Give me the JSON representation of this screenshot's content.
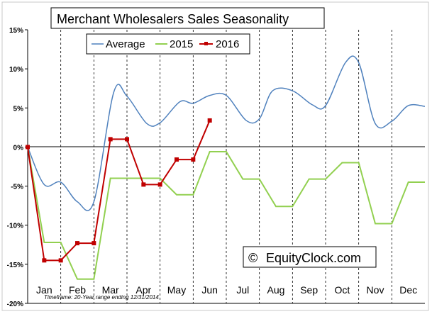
{
  "chart_data": {
    "type": "line",
    "title": "Merchant Wholesalers Sales Seasonality",
    "categories": [
      "Jan",
      "Feb",
      "Mar",
      "Apr",
      "May",
      "Jun",
      "Jul",
      "Aug",
      "Sep",
      "Oct",
      "Nov",
      "Dec"
    ],
    "y_ticks": [
      "15%",
      "10%",
      "5%",
      "0%",
      "-5%",
      "-10%",
      "-15%",
      "-20%"
    ],
    "ylim": [
      -20,
      15
    ],
    "xlim": [
      0,
      12
    ],
    "grid": "vertical dashed month dividers",
    "legend_placement": "top-left",
    "series": [
      {
        "name": "Average",
        "color": "#4f81bd",
        "smooth": true,
        "x": [
          0,
          0.5,
          1,
          1.5,
          2,
          2.6,
          3,
          3.6,
          4,
          4.6,
          5,
          5.5,
          6,
          6.6,
          7,
          7.4,
          8,
          8.6,
          9,
          9.6,
          10,
          10.5,
          11,
          11.5,
          12
        ],
        "values": [
          0,
          -4.8,
          -4.5,
          -7.0,
          -7.0,
          7.0,
          6.5,
          3.0,
          3.1,
          5.8,
          5.6,
          6.6,
          6.6,
          3.4,
          3.6,
          7.2,
          7.2,
          5.4,
          5.3,
          10.8,
          10.8,
          3.0,
          3.3,
          5.3,
          5.2
        ]
      },
      {
        "name": "2015",
        "color": "#92d050",
        "x": [
          0,
          0.5,
          1,
          1.5,
          2,
          2.5,
          3,
          3.5,
          4,
          4.5,
          5,
          5.5,
          6,
          6.5,
          7,
          7.5,
          8,
          8.5,
          9,
          9.5,
          10,
          10.5,
          11,
          11.5,
          12
        ],
        "values": [
          0,
          -12.2,
          -12.2,
          -16.9,
          -16.9,
          -4.0,
          -4.0,
          -4.0,
          -4.0,
          -6.1,
          -6.1,
          -0.6,
          -0.6,
          -4.1,
          -4.1,
          -7.6,
          -7.6,
          -4.1,
          -4.1,
          -2.0,
          -2.0,
          -9.8,
          -9.8,
          -4.5,
          -4.5
        ]
      },
      {
        "name": "2016",
        "color": "#c00000",
        "markers": true,
        "x": [
          0,
          0.5,
          1,
          1.5,
          2,
          2.5,
          3,
          3.5,
          4,
          4.5,
          5,
          5.5
        ],
        "values": [
          0,
          -14.5,
          -14.5,
          -12.3,
          -12.3,
          1.0,
          1.0,
          -4.8,
          -4.8,
          -1.6,
          -1.6,
          3.4
        ]
      }
    ],
    "annotations": {
      "watermark": "EquityClock.com",
      "copyright_symbol": "©",
      "footnote": "Timeframe: 20-Year range ending 12/31/2014"
    }
  }
}
